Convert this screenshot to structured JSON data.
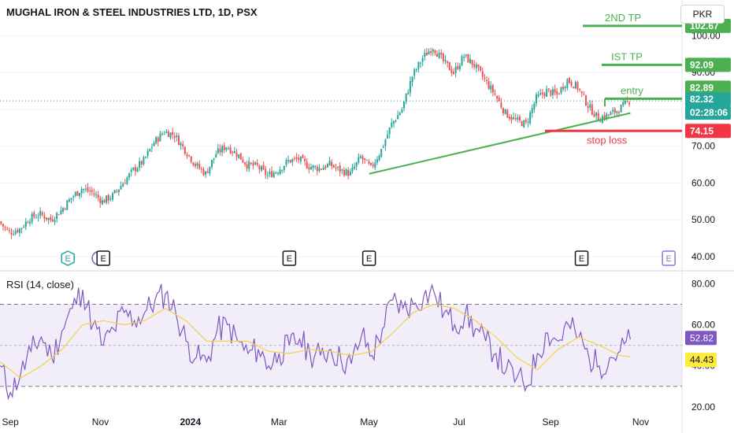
{
  "header": {
    "title": "MUGHAL IRON & STEEL INDUSTRIES LTD, 1D, PSX",
    "currency": "PKR"
  },
  "rsi": {
    "label": "RSI (14, close)"
  },
  "chart_data": [
    {
      "type": "candlestick",
      "price_axis": {
        "ticks": [
          "40.00",
          "50.00",
          "60.00",
          "70.00",
          "80.00",
          "90.00",
          "100.00"
        ],
        "ylim": [
          37,
          108
        ]
      },
      "x_axis": {
        "ticks": [
          "Sep",
          "Nov",
          "2024",
          "Mar",
          "May",
          "Jul",
          "Sep",
          "Nov"
        ],
        "range": [
          "2023-08-25",
          "2024-11-29"
        ]
      },
      "annotations": [
        {
          "text": "2ND TP",
          "value": 102.67,
          "color": "#4caf50"
        },
        {
          "text": "IST TP",
          "value": 92.09,
          "color": "#4caf50"
        },
        {
          "text": "entry",
          "value": 82.89,
          "color": "#4caf50"
        },
        {
          "text": "stop loss",
          "value": 74.15,
          "color": "#f23645"
        }
      ],
      "price_labels": [
        {
          "text": "102.67",
          "value": 102.67,
          "color": "#4caf50"
        },
        {
          "text": "92.09",
          "value": 92.09,
          "color": "#4caf50"
        },
        {
          "text": "82.89",
          "value": 82.89,
          "color": "#4caf50"
        },
        {
          "text": "82.32",
          "value": 82.32,
          "color": "#26a69a"
        },
        {
          "text": "02:28:06",
          "value": 82.32,
          "color": "#26a69a"
        },
        {
          "text": "74.15",
          "value": 74.15,
          "color": "#f23645"
        }
      ],
      "trendline": {
        "from": [
          "2024-05-01",
          62.5
        ],
        "to": [
          "2024-10-25",
          79.0
        ],
        "color": "#4caf50"
      },
      "last_price": 82.32,
      "events": [
        {
          "date": "2023-10-10",
          "letter": "E",
          "style": "green-hex"
        },
        {
          "date": "2023-10-31",
          "letter": "D",
          "style": "purple-circle"
        },
        {
          "date": "2023-11-03",
          "letter": "E",
          "style": "dark"
        },
        {
          "date": "2024-03-08",
          "letter": "E",
          "style": "dark"
        },
        {
          "date": "2024-05-01",
          "letter": "E",
          "style": "dark"
        },
        {
          "date": "2024-09-22",
          "letter": "E",
          "style": "dark"
        },
        {
          "date": "2024-11-20",
          "letter": "E",
          "style": "purple"
        }
      ],
      "colors": {
        "up": "#26a69a",
        "down": "#ef5350"
      },
      "series_points": [
        [
          "2023-08-25",
          49.5
        ],
        [
          "2023-09-01",
          46.5
        ],
        [
          "2023-09-08",
          47.5
        ],
        [
          "2023-09-15",
          50.5
        ],
        [
          "2023-09-22",
          51.5
        ],
        [
          "2023-09-29",
          50.0
        ],
        [
          "2023-10-06",
          52.5
        ],
        [
          "2023-10-13",
          56.0
        ],
        [
          "2023-10-20",
          58.5
        ],
        [
          "2023-10-27",
          57.5
        ],
        [
          "2023-11-03",
          55.0
        ],
        [
          "2023-11-10",
          56.5
        ],
        [
          "2023-11-17",
          60.0
        ],
        [
          "2023-11-24",
          63.5
        ],
        [
          "2023-12-01",
          66.0
        ],
        [
          "2023-12-08",
          71.0
        ],
        [
          "2023-12-15",
          74.0
        ],
        [
          "2023-12-22",
          73.0
        ],
        [
          "2023-12-29",
          69.0
        ],
        [
          "2024-01-05",
          65.0
        ],
        [
          "2024-01-12",
          62.5
        ],
        [
          "2024-01-19",
          68.0
        ],
        [
          "2024-01-26",
          70.0
        ],
        [
          "2024-02-02",
          68.0
        ],
        [
          "2024-02-09",
          65.0
        ],
        [
          "2024-02-16",
          64.5
        ],
        [
          "2024-02-23",
          62.0
        ],
        [
          "2024-03-01",
          63.5
        ],
        [
          "2024-03-08",
          66.0
        ],
        [
          "2024-03-15",
          66.5
        ],
        [
          "2024-03-22",
          64.5
        ],
        [
          "2024-03-29",
          64.0
        ],
        [
          "2024-04-05",
          65.0
        ],
        [
          "2024-04-12",
          63.5
        ],
        [
          "2024-04-19",
          62.5
        ],
        [
          "2024-04-26",
          67.0
        ],
        [
          "2024-05-03",
          64.0
        ],
        [
          "2024-05-10",
          69.0
        ],
        [
          "2024-05-17",
          76.0
        ],
        [
          "2024-05-24",
          80.0
        ],
        [
          "2024-05-31",
          89.0
        ],
        [
          "2024-06-07",
          94.0
        ],
        [
          "2024-06-14",
          97.0
        ],
        [
          "2024-06-21",
          93.0
        ],
        [
          "2024-06-28",
          90.0
        ],
        [
          "2024-07-05",
          94.5
        ],
        [
          "2024-07-12",
          92.0
        ],
        [
          "2024-07-19",
          88.0
        ],
        [
          "2024-07-26",
          84.0
        ],
        [
          "2024-08-02",
          79.0
        ],
        [
          "2024-08-09",
          77.0
        ],
        [
          "2024-08-16",
          76.0
        ],
        [
          "2024-08-23",
          83.0
        ],
        [
          "2024-08-30",
          85.0
        ],
        [
          "2024-09-06",
          84.0
        ],
        [
          "2024-09-13",
          88.0
        ],
        [
          "2024-09-20",
          86.0
        ],
        [
          "2024-09-27",
          81.0
        ],
        [
          "2024-10-04",
          77.5
        ],
        [
          "2024-10-11",
          78.5
        ],
        [
          "2024-10-18",
          80.0
        ],
        [
          "2024-10-25",
          82.32
        ]
      ]
    },
    {
      "type": "line",
      "title": "RSI (14, close)",
      "y_axis": {
        "ticks": [
          "20.00",
          "40.00",
          "60.00",
          "80.00"
        ],
        "ylim": [
          18,
          84
        ]
      },
      "band": [
        30,
        70
      ],
      "midline": 50,
      "series_labels": [
        {
          "text": "52.82",
          "value": 52.82,
          "color": "#7e57c2"
        },
        {
          "text": "44.43",
          "value": 44.43,
          "color": "#ffeb3b"
        }
      ],
      "series": [
        {
          "name": "RSI",
          "color": "#7e57c2",
          "points": [
            [
              "2023-08-25",
              40
            ],
            [
              "2023-09-01",
              27
            ],
            [
              "2023-09-08",
              36
            ],
            [
              "2023-09-15",
              47
            ],
            [
              "2023-09-22",
              54
            ],
            [
              "2023-09-29",
              44
            ],
            [
              "2023-10-06",
              57
            ],
            [
              "2023-10-13",
              68
            ],
            [
              "2023-10-20",
              77
            ],
            [
              "2023-10-27",
              60
            ],
            [
              "2023-11-03",
              50
            ],
            [
              "2023-11-10",
              58
            ],
            [
              "2023-11-17",
              66
            ],
            [
              "2023-11-24",
              62
            ],
            [
              "2023-12-01",
              66
            ],
            [
              "2023-12-08",
              72
            ],
            [
              "2023-12-15",
              75
            ],
            [
              "2023-12-22",
              66
            ],
            [
              "2023-12-29",
              52
            ],
            [
              "2024-01-05",
              44
            ],
            [
              "2024-01-12",
              42
            ],
            [
              "2024-01-19",
              57
            ],
            [
              "2024-01-26",
              60
            ],
            [
              "2024-02-02",
              52
            ],
            [
              "2024-02-09",
              46
            ],
            [
              "2024-02-16",
              48
            ],
            [
              "2024-02-23",
              40
            ],
            [
              "2024-03-01",
              46
            ],
            [
              "2024-03-08",
              50
            ],
            [
              "2024-03-15",
              53
            ],
            [
              "2024-03-22",
              46
            ],
            [
              "2024-03-29",
              45
            ],
            [
              "2024-04-05",
              48
            ],
            [
              "2024-04-12",
              43
            ],
            [
              "2024-04-19",
              41
            ],
            [
              "2024-04-26",
              55
            ],
            [
              "2024-05-03",
              45
            ],
            [
              "2024-05-10",
              58
            ],
            [
              "2024-05-17",
              72
            ],
            [
              "2024-05-24",
              68
            ],
            [
              "2024-05-31",
              70
            ],
            [
              "2024-06-07",
              74
            ],
            [
              "2024-06-14",
              76
            ],
            [
              "2024-06-21",
              66
            ],
            [
              "2024-06-28",
              60
            ],
            [
              "2024-07-05",
              65
            ],
            [
              "2024-07-12",
              58
            ],
            [
              "2024-07-19",
              52
            ],
            [
              "2024-07-26",
              46
            ],
            [
              "2024-08-02",
              38
            ],
            [
              "2024-08-09",
              34
            ],
            [
              "2024-08-16",
              30
            ],
            [
              "2024-08-23",
              46
            ],
            [
              "2024-08-30",
              56
            ],
            [
              "2024-09-06",
              52
            ],
            [
              "2024-09-13",
              60
            ],
            [
              "2024-09-20",
              54
            ],
            [
              "2024-09-27",
              44
            ],
            [
              "2024-10-04",
              40
            ],
            [
              "2024-10-11",
              44
            ],
            [
              "2024-10-18",
              47
            ],
            [
              "2024-10-25",
              52.82
            ]
          ]
        },
        {
          "name": "RSI-based MA",
          "color": "#f5d142",
          "points": [
            [
              "2023-08-25",
              42
            ],
            [
              "2023-09-08",
              34
            ],
            [
              "2023-09-22",
              40
            ],
            [
              "2023-10-06",
              48
            ],
            [
              "2023-10-20",
              60
            ],
            [
              "2023-11-03",
              62
            ],
            [
              "2023-11-17",
              60
            ],
            [
              "2023-12-01",
              62
            ],
            [
              "2023-12-15",
              68
            ],
            [
              "2023-12-29",
              62
            ],
            [
              "2024-01-12",
              52
            ],
            [
              "2024-01-26",
              52
            ],
            [
              "2024-02-09",
              52
            ],
            [
              "2024-02-23",
              47
            ],
            [
              "2024-03-08",
              46
            ],
            [
              "2024-03-22",
              48
            ],
            [
              "2024-04-05",
              47
            ],
            [
              "2024-04-19",
              45
            ],
            [
              "2024-05-03",
              47
            ],
            [
              "2024-05-17",
              56
            ],
            [
              "2024-05-31",
              66
            ],
            [
              "2024-06-14",
              70
            ],
            [
              "2024-06-28",
              68
            ],
            [
              "2024-07-12",
              62
            ],
            [
              "2024-07-26",
              54
            ],
            [
              "2024-08-09",
              44
            ],
            [
              "2024-08-23",
              38
            ],
            [
              "2024-09-06",
              48
            ],
            [
              "2024-09-20",
              54
            ],
            [
              "2024-10-04",
              50
            ],
            [
              "2024-10-18",
              45
            ],
            [
              "2024-10-25",
              44.43
            ]
          ]
        }
      ]
    }
  ]
}
